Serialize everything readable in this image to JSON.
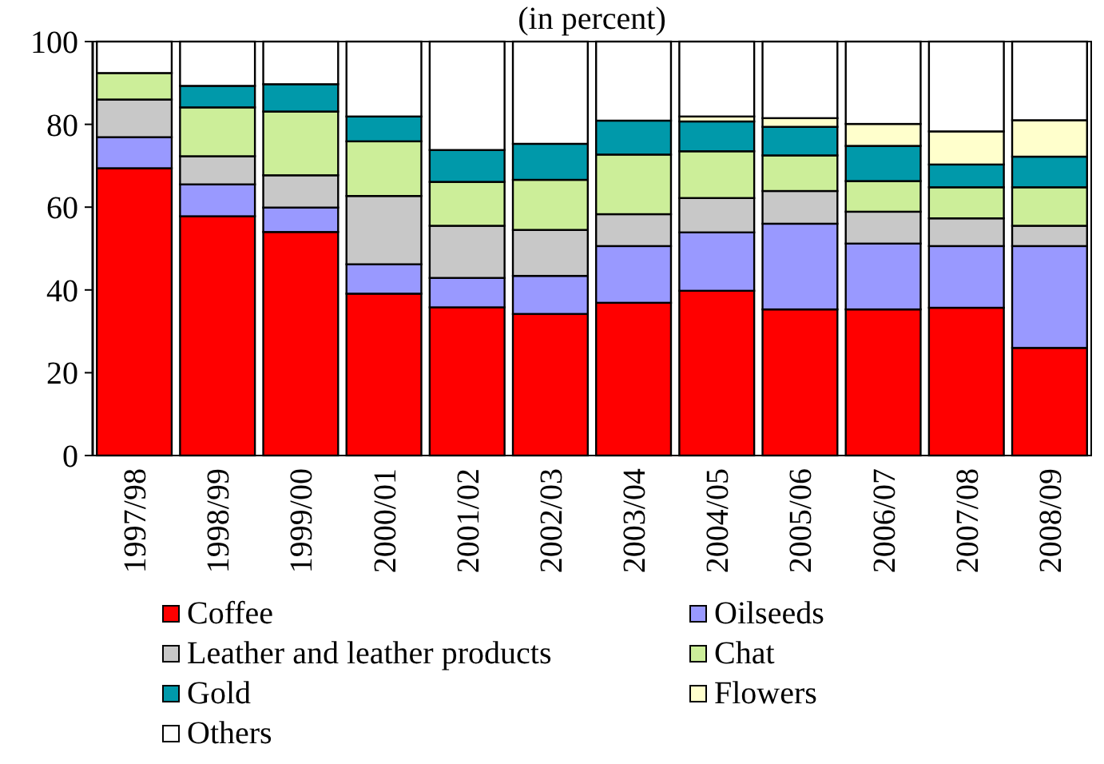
{
  "chart_data": {
    "type": "bar",
    "title": "(in percent)",
    "stacked": true,
    "categories": [
      "1997/98",
      "1998/99",
      "1999/00",
      "2000/01",
      "2001/02",
      "2002/03",
      "2003/04",
      "2004/05",
      "2005/06",
      "2006/07",
      "2007/08",
      "2008/09"
    ],
    "series": [
      {
        "name": "Coffee",
        "color": "#ff0000",
        "values": [
          69.4,
          57.8,
          54.0,
          39.1,
          35.8,
          34.2,
          36.9,
          39.8,
          35.3,
          35.3,
          35.7,
          26.0
        ]
      },
      {
        "name": "Oilseeds",
        "color": "#9999ff",
        "values": [
          7.5,
          7.7,
          5.9,
          7.1,
          7.1,
          9.2,
          13.7,
          14.1,
          20.7,
          15.9,
          14.9,
          24.6
        ]
      },
      {
        "name": "Leather and leather products",
        "color": "#c8c8c8",
        "values": [
          9.1,
          6.8,
          7.8,
          16.5,
          12.6,
          11.1,
          7.7,
          8.3,
          7.9,
          7.7,
          6.7,
          4.9
        ]
      },
      {
        "name": "Chat",
        "color": "#ccee99",
        "values": [
          6.4,
          11.8,
          15.4,
          13.2,
          10.6,
          12.1,
          14.4,
          11.3,
          8.6,
          7.4,
          7.5,
          9.3
        ]
      },
      {
        "name": "Gold",
        "color": "#0099aa",
        "values": [
          0,
          5.2,
          6.6,
          6.0,
          7.7,
          8.7,
          8.2,
          7.2,
          6.9,
          8.5,
          5.5,
          7.4
        ]
      },
      {
        "name": "Flowers",
        "color": "#ffffcc",
        "values": [
          0,
          0,
          0,
          0,
          0,
          0,
          0,
          1.2,
          2.1,
          5.3,
          8.0,
          8.8
        ]
      },
      {
        "name": "Others",
        "color": "#ffffff",
        "values": [
          7.6,
          10.7,
          10.3,
          18.1,
          26.2,
          24.7,
          19.1,
          18.1,
          18.5,
          19.9,
          21.7,
          19.0
        ]
      }
    ],
    "ylim": [
      0,
      100
    ],
    "yticks": [
      0,
      20,
      40,
      60,
      80,
      100
    ],
    "grid": false,
    "legend": "bottom"
  }
}
